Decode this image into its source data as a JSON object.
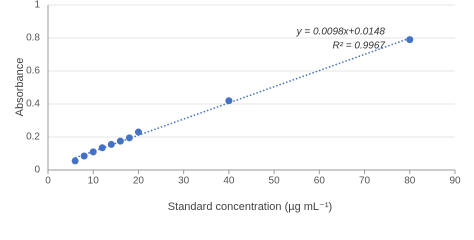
{
  "chart_data": {
    "type": "scatter",
    "x_label": "Standard concentration (µg mL⁻¹)",
    "y_label": "Absorbance",
    "x": [
      6,
      8,
      10,
      12,
      14,
      16,
      18,
      20,
      40,
      80
    ],
    "series": [
      {
        "name": "Absorbance",
        "color": "#4472c4",
        "values": [
          0.055,
          0.085,
          0.11,
          0.135,
          0.155,
          0.175,
          0.195,
          0.23,
          0.42,
          0.79
        ]
      }
    ],
    "xlim": [
      0,
      90
    ],
    "xticks": [
      0,
      10,
      20,
      30,
      40,
      50,
      60,
      70,
      80,
      90
    ],
    "ylim": [
      0,
      1
    ],
    "yticks": [
      0,
      0.2,
      0.4,
      0.6,
      0.8,
      1
    ],
    "grid": true,
    "trendline": {
      "slope": 0.0098,
      "intercept": 0.0148,
      "color": "#4472c4",
      "equation": "y = 0.0098x+0.0148",
      "r_squared": "R² = 0.9967"
    }
  }
}
